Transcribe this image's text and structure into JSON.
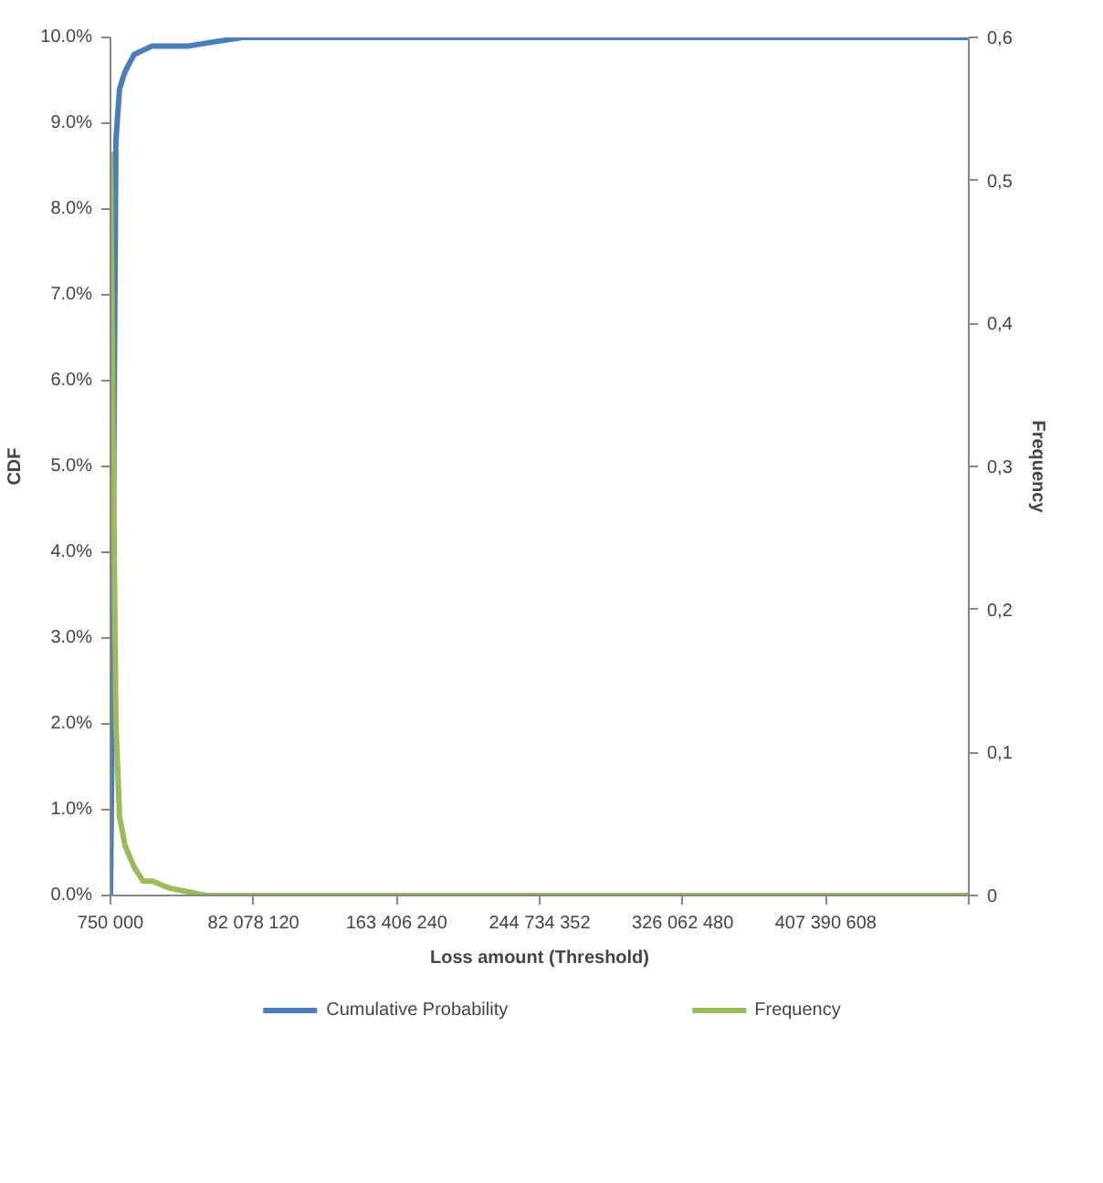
{
  "chart_data": {
    "type": "line",
    "xlabel": "Loss amount (Threshold)",
    "ylabel": "CDF",
    "y2label": "Frequency",
    "xlim": [
      750000,
      488718728
    ],
    "xticks": [
      {
        "value": 750000,
        "label": "750 000"
      },
      {
        "value": 82078120,
        "label": "82 078 120"
      },
      {
        "value": 163406240,
        "label": "163 406 240"
      },
      {
        "value": 244734352,
        "label": "244 734 352"
      },
      {
        "value": 326062480,
        "label": "326 062 480"
      },
      {
        "value": 407390608,
        "label": "407 390 608"
      },
      {
        "value": 488718728,
        "label": null
      }
    ],
    "ylim": [
      0,
      10
    ],
    "yticks": [
      {
        "value": 0,
        "label": "0.0%"
      },
      {
        "value": 1,
        "label": "1.0%"
      },
      {
        "value": 2,
        "label": "2.0%"
      },
      {
        "value": 3,
        "label": "3.0%"
      },
      {
        "value": 4,
        "label": "4.0%"
      },
      {
        "value": 5,
        "label": "5.0%"
      },
      {
        "value": 6,
        "label": "6.0%"
      },
      {
        "value": 7,
        "label": "7.0%"
      },
      {
        "value": 8,
        "label": "8.0%"
      },
      {
        "value": 9,
        "label": "9.0%"
      },
      {
        "value": 10,
        "label": "10.0%"
      }
    ],
    "y2lim": [
      0,
      0.6
    ],
    "y2ticks": [
      0,
      {
        "value": 0.1,
        "label": "0,1"
      },
      {
        "value": 0.2,
        "label": "0,2"
      },
      {
        "value": 0.3,
        "label": "0,3"
      },
      {
        "value": 0.4,
        "label": "0,4"
      },
      {
        "value": 0.5,
        "label": "0,5"
      },
      {
        "value": 0.6,
        "label": "0,6"
      }
    ],
    "grid": false,
    "legend": "bottom",
    "marker": "none",
    "line_style": "solid",
    "series": [
      {
        "name": "Cumulative Probability",
        "color": "#4a7ebb",
        "x": [
          750000,
          1780000,
          3840000,
          5900000,
          8990000,
          14130000,
          24430000,
          45000000,
          75900000,
          127400000,
          200000000,
          488718728
        ],
        "values": [
          0,
          2.2,
          8.8,
          9.4,
          9.6,
          9.8,
          9.9,
          9.9,
          10,
          10,
          10,
          10
        ]
      },
      {
        "name": "Frequency",
        "color": "#9bbb59",
        "axis": "y2",
        "x": [
          750000,
          3840000,
          5900000,
          8990000,
          14130000,
          19280000,
          24430000,
          34730000,
          55330000,
          86220000,
          168600000,
          488718728
        ],
        "values": [
          0.52,
          0.12,
          0.055,
          0.035,
          0.02,
          0.01,
          0.01,
          0.005,
          0,
          0,
          0,
          0
        ]
      }
    ]
  }
}
